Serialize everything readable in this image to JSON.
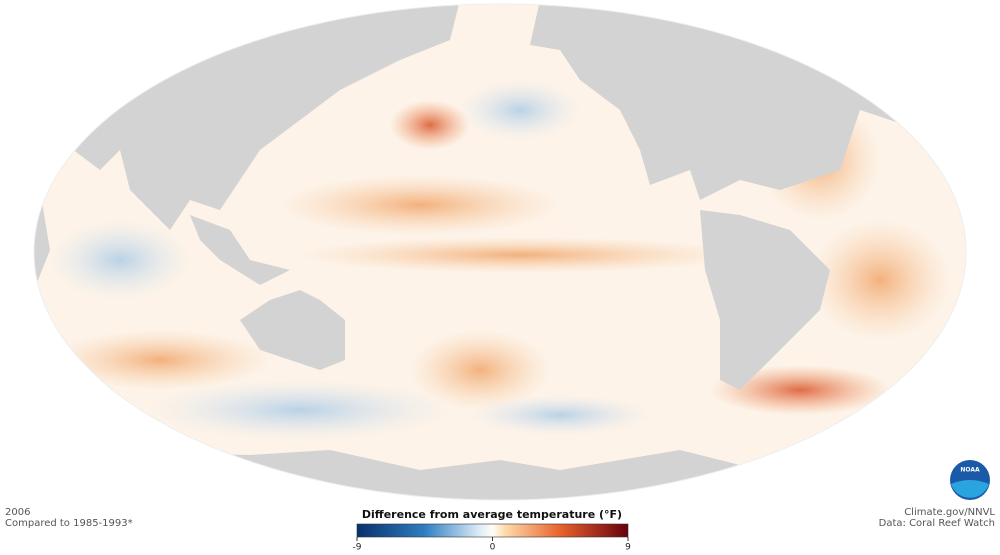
{
  "header": {
    "year": "2006",
    "baseline": "Compared to 1985-1993*"
  },
  "credits": {
    "source": "Climate.gov/NNVL",
    "data": "Data: Coral Reef Watch",
    "logo": "NOAA"
  },
  "legend": {
    "title": "Difference from average temperature (°F)",
    "ticks": [
      -9,
      0,
      9
    ]
  }
}
